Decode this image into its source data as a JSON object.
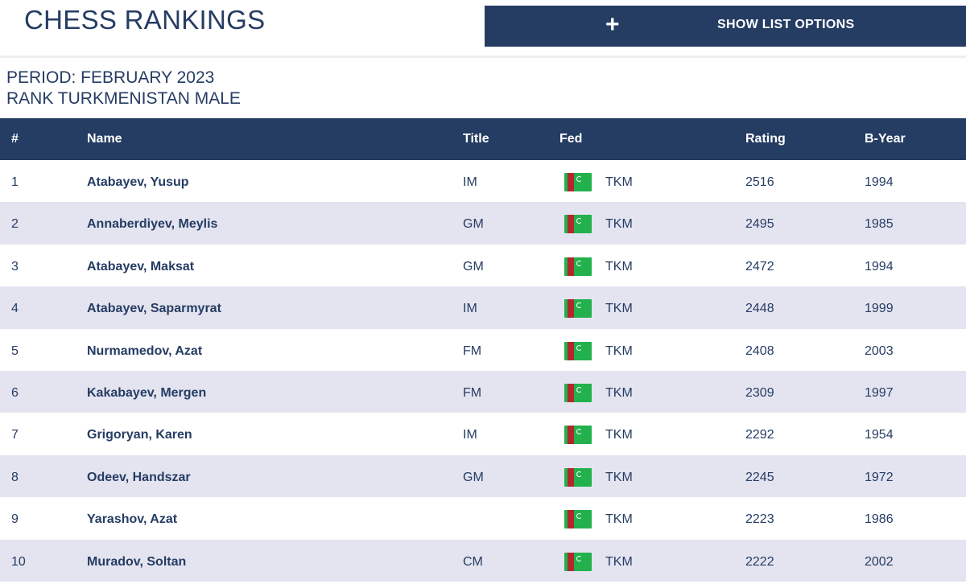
{
  "header": {
    "title": "CHESS RANKINGS",
    "options_icon": "+",
    "options_label": "SHOW LIST OPTIONS"
  },
  "period": {
    "line1": "PERIOD: FEBRUARY 2023",
    "line2": "RANK TURKMENISTAN MALE"
  },
  "table": {
    "columns": {
      "rank": "#",
      "name": "Name",
      "title": "Title",
      "fed": "Fed",
      "rating": "Rating",
      "byear": "B-Year"
    },
    "rows": [
      {
        "rank": "1",
        "name": "Atabayev, Yusup",
        "title": "IM",
        "flag": "turkmenistan-flag",
        "fed": "TKM",
        "rating": "2516",
        "byear": "1994"
      },
      {
        "rank": "2",
        "name": "Annaberdiyev, Meylis",
        "title": "GM",
        "flag": "turkmenistan-flag",
        "fed": "TKM",
        "rating": "2495",
        "byear": "1985"
      },
      {
        "rank": "3",
        "name": "Atabayev, Maksat",
        "title": "GM",
        "flag": "turkmenistan-flag",
        "fed": "TKM",
        "rating": "2472",
        "byear": "1994"
      },
      {
        "rank": "4",
        "name": "Atabayev, Saparmyrat",
        "title": "IM",
        "flag": "turkmenistan-flag",
        "fed": "TKM",
        "rating": "2448",
        "byear": "1999"
      },
      {
        "rank": "5",
        "name": "Nurmamedov, Azat",
        "title": "FM",
        "flag": "turkmenistan-flag",
        "fed": "TKM",
        "rating": "2408",
        "byear": "2003"
      },
      {
        "rank": "6",
        "name": "Kakabayev, Mergen",
        "title": "FM",
        "flag": "turkmenistan-flag",
        "fed": "TKM",
        "rating": "2309",
        "byear": "1997"
      },
      {
        "rank": "7",
        "name": "Grigoryan, Karen",
        "title": "IM",
        "flag": "turkmenistan-flag",
        "fed": "TKM",
        "rating": "2292",
        "byear": "1954"
      },
      {
        "rank": "8",
        "name": "Odeev, Handszar",
        "title": "GM",
        "flag": "turkmenistan-flag",
        "fed": "TKM",
        "rating": "2245",
        "byear": "1972"
      },
      {
        "rank": "9",
        "name": "Yarashov, Azat",
        "title": "",
        "flag": "turkmenistan-flag",
        "fed": "TKM",
        "rating": "2223",
        "byear": "1986"
      },
      {
        "rank": "10",
        "name": "Muradov, Soltan",
        "title": "CM",
        "flag": "turkmenistan-flag",
        "fed": "TKM",
        "rating": "2222",
        "byear": "2002"
      }
    ]
  },
  "colors": {
    "navy": "#253c63",
    "row_alt": "#e4e4f0",
    "flag_green": "#22b14c",
    "flag_red": "#b3262e"
  }
}
